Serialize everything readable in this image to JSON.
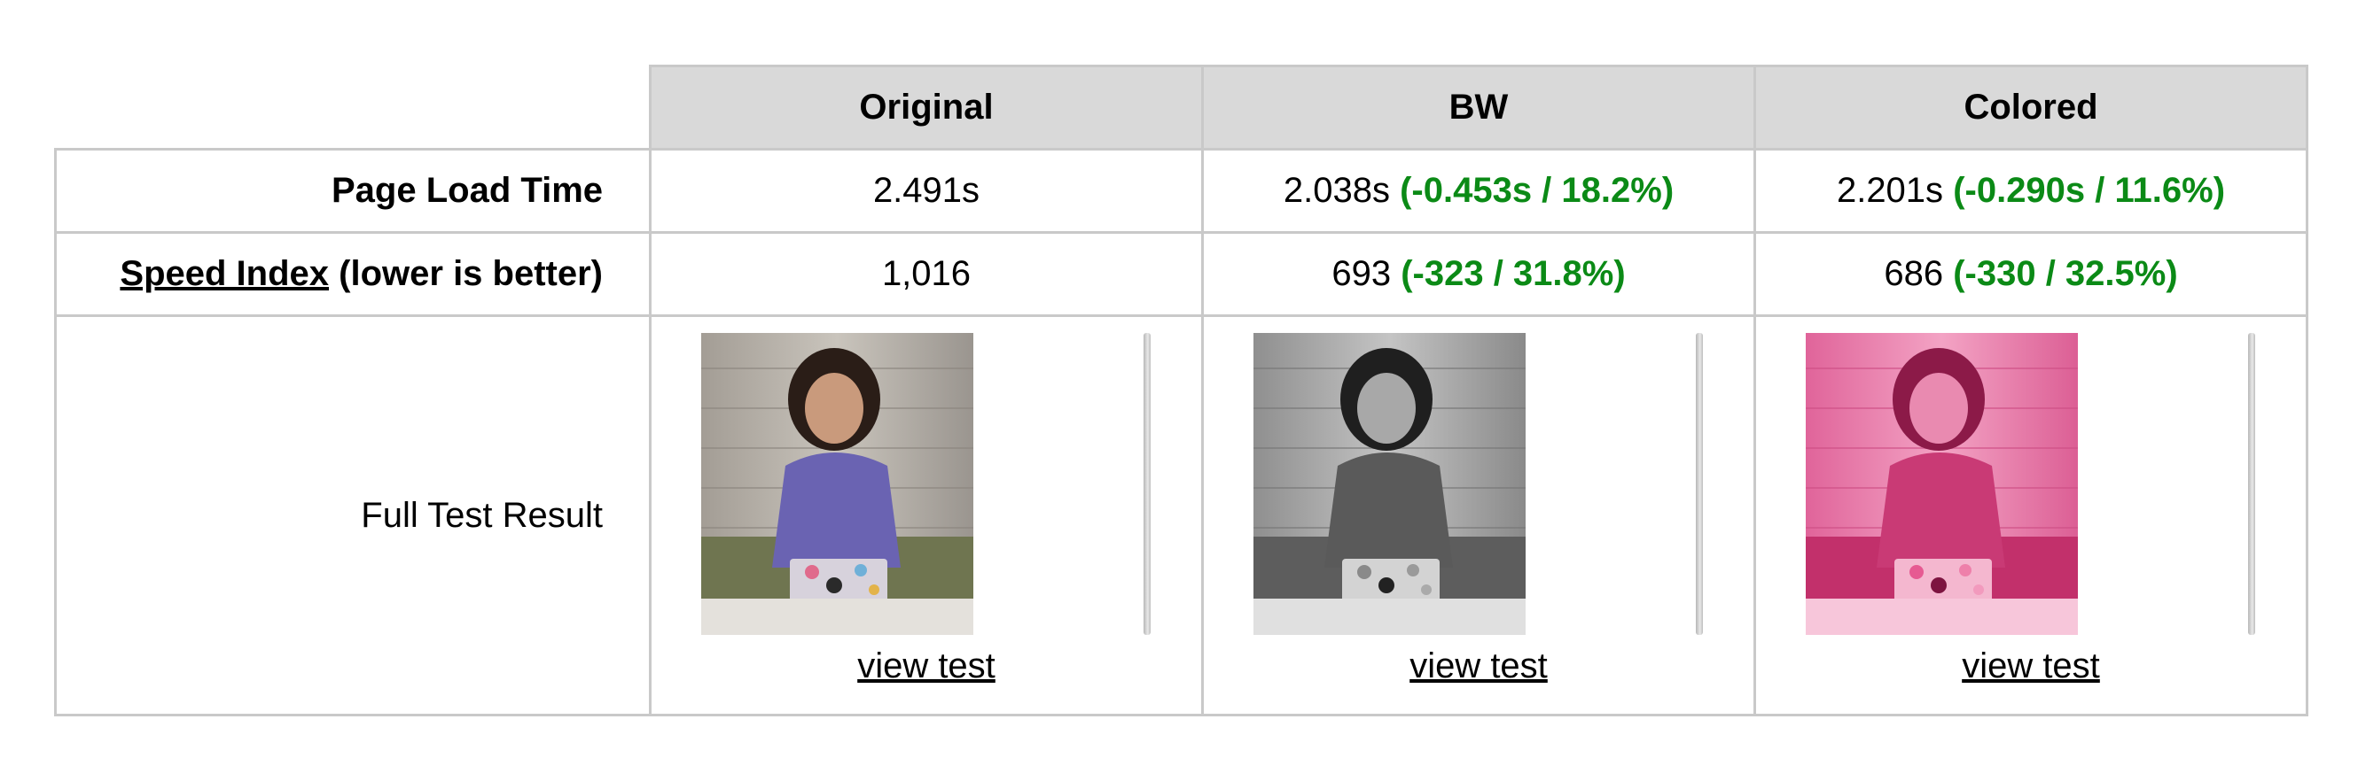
{
  "table": {
    "columns": [
      "Original",
      "BW",
      "Colored"
    ],
    "rows": {
      "page_load_time": {
        "label": "Page Load Time",
        "values": [
          {
            "value": "2.491s",
            "delta": ""
          },
          {
            "value": "2.038s",
            "delta": "(-0.453s / 18.2%)"
          },
          {
            "value": "2.201s",
            "delta": "(-0.290s / 11.6%)"
          }
        ]
      },
      "speed_index": {
        "label_link": "Speed Index",
        "label_suffix": "(lower is better)",
        "values": [
          {
            "value": "1,016",
            "delta": ""
          },
          {
            "value": "693",
            "delta": "(-323 / 31.8%)"
          },
          {
            "value": "686",
            "delta": "(-330 / 32.5%)"
          }
        ]
      },
      "full_test": {
        "label": "Full Test Result",
        "link_text": "view test"
      }
    }
  },
  "colors": {
    "delta_green": "#0b8a16",
    "header_bg": "#d9d9d9",
    "border": "#c9c9c9",
    "tint_original": "#6a5fb3",
    "tint_bw": "#6b6b6b",
    "tint_colored": "#e0407a"
  }
}
